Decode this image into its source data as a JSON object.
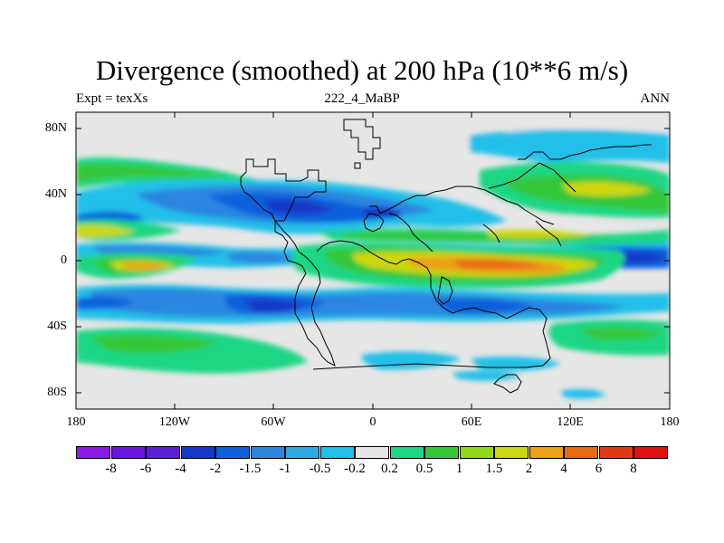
{
  "title": "Divergence (smoothed) at 200 hPa (10**6 m/s)",
  "subtitle_left": "Expt = texXs",
  "subtitle_center": "222_4_MaBP",
  "subtitle_right": "ANN",
  "y_ticks": [
    "80N",
    "40N",
    "0",
    "40S",
    "80S"
  ],
  "x_ticks": [
    "180",
    "120W",
    "60W",
    "0",
    "60E",
    "120E",
    "180"
  ],
  "colorbar": {
    "labels": [
      "-8",
      "-6",
      "-4",
      "-2",
      "-1.5",
      "-1",
      "-0.5",
      "-0.2",
      "0.2",
      "0.5",
      "1",
      "1.5",
      "2",
      "4",
      "6",
      "8"
    ],
    "colors": [
      "#8b1ae8",
      "#6a16e0",
      "#5a1fd6",
      "#1638c8",
      "#1160dc",
      "#2b86e0",
      "#2ea9e2",
      "#22c0e8",
      "#e6e6e6",
      "#1fd684",
      "#36c83a",
      "#92d81a",
      "#cdd611",
      "#eba016",
      "#e86a12",
      "#e03a14",
      "#e01010"
    ]
  }
}
